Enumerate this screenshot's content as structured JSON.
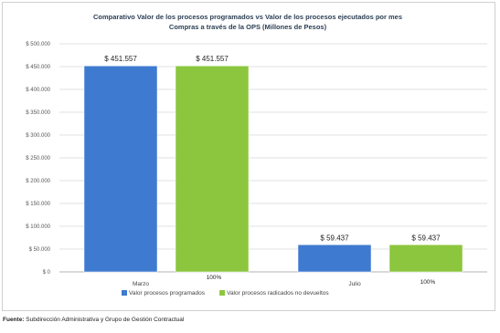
{
  "chart_data": {
    "type": "bar",
    "title": "Comparativo Valor de  los procesos programados vs Valor de  los procesos ejecutados por mes",
    "subtitle": "Compras a través de la OPS (Millones de Pesos)",
    "categories": [
      "Marzo",
      "Julio"
    ],
    "series": [
      {
        "name": "Valor procesos programados",
        "values": [
          451557,
          59437
        ],
        "labels": [
          "$ 451.557",
          "$ 59.437"
        ],
        "color": "#3f7ad1"
      },
      {
        "name": "Valor procesos radicados no devueltos",
        "values": [
          451557,
          59437
        ],
        "labels": [
          "$ 451.557",
          "$ 59.437"
        ],
        "color": "#8cc63e"
      }
    ],
    "percent_labels": [
      "100%",
      "100%"
    ],
    "ylim": [
      0,
      500000
    ],
    "yticks": [
      0,
      50000,
      100000,
      150000,
      200000,
      250000,
      300000,
      350000,
      400000,
      450000,
      500000
    ],
    "ytick_labels": [
      "$ 0",
      "$ 50.000",
      "$ 100.000",
      "$ 150.000",
      "$ 200.000",
      "$ 250.000",
      "$ 300.000",
      "$ 350.000",
      "$ 400.000",
      "$ 450.000",
      "$ 500.000"
    ],
    "grid": true,
    "legend_position": "bottom"
  },
  "source": {
    "label": "Fuente:",
    "text": " Subdirección Administrativa y Grupo de Gestión Contractual"
  }
}
